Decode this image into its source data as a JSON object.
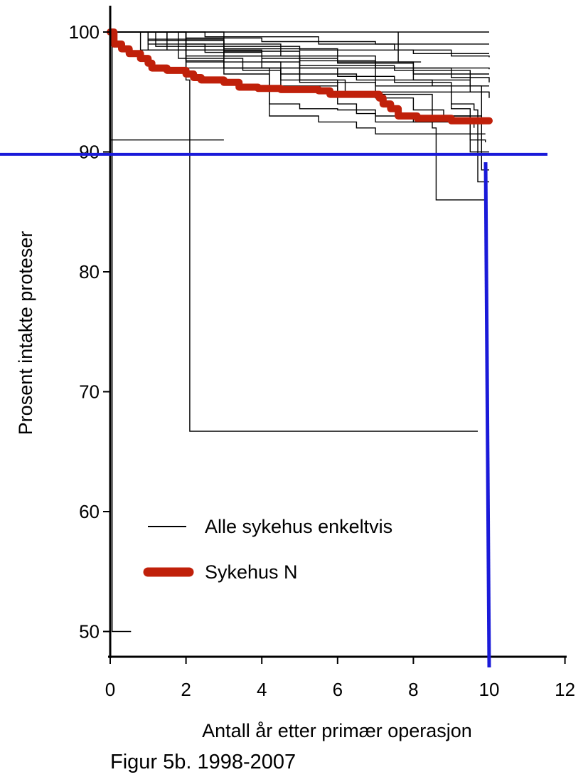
{
  "chart_data": {
    "type": "line",
    "title": "Figur 5b. 1998-2007",
    "xlabel": "Antall år etter primær operasjon",
    "ylabel": "Prosent intakte proteser",
    "xlim": [
      0,
      12
    ],
    "ylim": [
      48,
      102
    ],
    "xticks": [
      0,
      2,
      4,
      6,
      8,
      10,
      12
    ],
    "yticks": [
      50,
      60,
      70,
      80,
      90,
      100
    ],
    "grid": false,
    "legend": {
      "placement": "lower-left",
      "entries": [
        {
          "label": "Alle sykehus enkeltvis",
          "style": "thin-black"
        },
        {
          "label": "Sykehus N",
          "style": "thick-red"
        }
      ]
    },
    "colors": {
      "alle": "#000000",
      "sykehus_n": "#c0200a",
      "reference": "#1a1ad9"
    },
    "reference_lines": [
      {
        "orientation": "horizontal",
        "y": 89.8
      },
      {
        "orientation": "vertical",
        "x": 10.0
      }
    ],
    "series": [
      {
        "name": "Sykehus N",
        "points": [
          [
            0,
            100
          ],
          [
            0.1,
            99
          ],
          [
            0.3,
            98.6
          ],
          [
            0.5,
            98.2
          ],
          [
            0.8,
            97.8
          ],
          [
            1.0,
            97.4
          ],
          [
            1.1,
            97.0
          ],
          [
            1.5,
            96.8
          ],
          [
            2.0,
            96.5
          ],
          [
            2.2,
            96.2
          ],
          [
            2.4,
            96.0
          ],
          [
            3.0,
            95.8
          ],
          [
            3.4,
            95.4
          ],
          [
            3.9,
            95.3
          ],
          [
            4.5,
            95.2
          ],
          [
            5.5,
            95.1
          ],
          [
            5.8,
            94.8
          ],
          [
            7.1,
            94.5
          ],
          [
            7.2,
            94.0
          ],
          [
            7.4,
            93.6
          ],
          [
            7.6,
            93.0
          ],
          [
            8.1,
            92.8
          ],
          [
            9.0,
            92.6
          ],
          [
            10.0,
            92.6
          ]
        ]
      },
      {
        "points": [
          [
            0,
            100
          ],
          [
            10,
            100
          ]
        ]
      },
      {
        "points": [
          [
            0,
            100
          ],
          [
            2.0,
            99.5
          ],
          [
            4.0,
            99.2
          ],
          [
            7.0,
            99.0
          ],
          [
            10,
            99.0
          ]
        ]
      },
      {
        "points": [
          [
            0,
            100
          ],
          [
            1.5,
            99.3
          ],
          [
            3.0,
            98.8
          ],
          [
            5.0,
            98.5
          ],
          [
            8.0,
            98.2
          ],
          [
            10,
            98.2
          ]
        ]
      },
      {
        "points": [
          [
            0,
            100
          ],
          [
            1.0,
            99.0
          ],
          [
            2.5,
            98.3
          ],
          [
            4.0,
            97.8
          ],
          [
            6.0,
            97.4
          ],
          [
            8.0,
            97.0
          ],
          [
            10,
            96.9
          ]
        ]
      },
      {
        "points": [
          [
            0,
            100
          ],
          [
            1.2,
            98.8
          ],
          [
            3.0,
            98.0
          ],
          [
            5.0,
            97.2
          ],
          [
            7.5,
            96.8
          ],
          [
            9.5,
            96.5
          ],
          [
            10,
            96.5
          ]
        ]
      },
      {
        "points": [
          [
            0,
            100
          ],
          [
            0.8,
            98.5
          ],
          [
            2.0,
            97.5
          ],
          [
            4.5,
            96.5
          ],
          [
            6.5,
            96.0
          ],
          [
            8.5,
            95.5
          ],
          [
            10,
            95.5
          ]
        ]
      },
      {
        "points": [
          [
            0,
            100
          ],
          [
            2.0,
            98.0
          ],
          [
            4.0,
            97.0
          ],
          [
            6.0,
            96.3
          ],
          [
            7.5,
            95.8
          ],
          [
            9.0,
            95.0
          ],
          [
            10,
            94.5
          ]
        ]
      },
      {
        "points": [
          [
            0,
            100
          ],
          [
            1.8,
            97.8
          ],
          [
            3.5,
            96.8
          ],
          [
            4.5,
            95.5
          ],
          [
            6.0,
            94.8
          ],
          [
            8.5,
            93.0
          ],
          [
            9.8,
            92.5
          ]
        ]
      },
      {
        "points": [
          [
            0,
            100
          ],
          [
            1.0,
            98.5
          ],
          [
            3.0,
            96.5
          ],
          [
            4.2,
            94.0
          ],
          [
            5.0,
            93.6
          ],
          [
            6.0,
            93.5
          ],
          [
            7.0,
            93.0
          ],
          [
            8.0,
            92.5
          ],
          [
            9.6,
            92.0
          ]
        ]
      },
      {
        "points": [
          [
            0,
            100
          ],
          [
            2.0,
            97.0
          ],
          [
            4.2,
            93.0
          ],
          [
            5.5,
            92.5
          ],
          [
            6.5,
            92.0
          ],
          [
            7.0,
            91.5
          ],
          [
            9.9,
            91.5
          ]
        ]
      },
      {
        "points": [
          [
            0,
            100
          ],
          [
            2.0,
            98.5
          ],
          [
            4.0,
            97.5
          ],
          [
            5.0,
            96.0
          ],
          [
            6.2,
            95.0
          ],
          [
            7.0,
            94.5
          ],
          [
            8.0,
            93.5
          ],
          [
            8.8,
            93.0
          ],
          [
            9.5,
            91.0
          ],
          [
            9.9,
            90.8
          ]
        ]
      },
      {
        "points": [
          [
            0,
            100
          ],
          [
            2.0,
            97.6
          ],
          [
            3.0,
            97.0
          ],
          [
            4.5,
            96.0
          ],
          [
            6.0,
            94.0
          ],
          [
            6.5,
            93.2
          ],
          [
            7.0,
            92.5
          ],
          [
            8.5,
            92.0
          ],
          [
            8.6,
            86.0
          ],
          [
            9.9,
            86.0
          ]
        ]
      },
      {
        "points": [
          [
            0,
            100
          ],
          [
            1.0,
            99.3
          ],
          [
            3.0,
            98.0
          ],
          [
            5.0,
            97.0
          ],
          [
            7.0,
            95.5
          ],
          [
            9.0,
            94.0
          ],
          [
            9.6,
            93.5
          ],
          [
            9.7,
            87.5
          ],
          [
            10,
            87.5
          ]
        ]
      },
      {
        "points": [
          [
            0,
            100
          ],
          [
            2.0,
            99.0
          ],
          [
            4.5,
            98.0
          ],
          [
            7.0,
            97.0
          ],
          [
            8.0,
            96.5
          ],
          [
            9.5,
            95.5
          ],
          [
            9.8,
            88.5
          ],
          [
            10,
            88.5
          ]
        ]
      },
      {
        "points": [
          [
            0,
            100
          ],
          [
            1.5,
            98.5
          ],
          [
            3.0,
            97.0
          ],
          [
            5.0,
            95.8
          ],
          [
            7.0,
            95.0
          ],
          [
            9.0,
            93.6
          ],
          [
            9.5,
            90.0
          ],
          [
            10,
            90.0
          ]
        ]
      },
      {
        "points": [
          [
            0,
            100
          ],
          [
            1.0,
            99.4
          ],
          [
            3.0,
            98.4
          ],
          [
            5.0,
            97.6
          ],
          [
            7.0,
            97.0
          ],
          [
            9.0,
            96.2
          ],
          [
            10,
            95.8
          ]
        ]
      },
      {
        "points": [
          [
            0,
            100
          ],
          [
            2.0,
            96.0
          ],
          [
            2.1,
            66.7
          ],
          [
            9.7,
            66.7
          ]
        ]
      },
      {
        "points": [
          [
            0,
            91.0
          ],
          [
            3.0,
            91.0
          ]
        ]
      },
      {
        "points": [
          [
            0,
            100
          ],
          [
            0.05,
            50.0
          ],
          [
            0.55,
            50.0
          ]
        ]
      },
      {
        "points": [
          [
            7.6,
            100
          ],
          [
            7.6,
            97.5
          ],
          [
            8.2,
            97.5
          ]
        ]
      },
      {
        "points": [
          [
            0,
            100
          ],
          [
            3.0,
            98.6
          ],
          [
            6.0,
            97.5
          ],
          [
            8.0,
            96.0
          ],
          [
            9.5,
            95.0
          ],
          [
            10,
            95.0
          ]
        ]
      },
      {
        "points": [
          [
            0,
            100
          ],
          [
            2.5,
            99.6
          ],
          [
            5.5,
            99.0
          ],
          [
            7.5,
            98.5
          ],
          [
            9.0,
            98.0
          ],
          [
            10,
            97.9
          ]
        ]
      }
    ]
  }
}
